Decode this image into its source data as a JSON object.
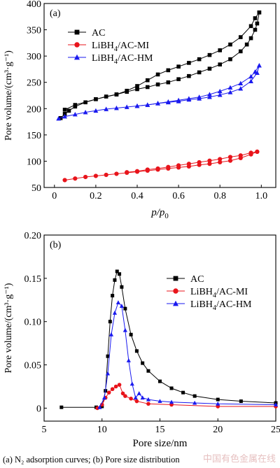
{
  "chart_data": [
    {
      "panel": "(a)",
      "type": "line",
      "xlabel": "p/p0",
      "ylabel": "Pore volume/(cm³·g⁻¹)",
      "xlim": [
        -0.05,
        1.07
      ],
      "ylim": [
        50,
        400
      ],
      "xticks": [
        "0",
        "0.2",
        "0.4",
        "0.6",
        "0.8",
        "1.0"
      ],
      "yticks": [
        "50",
        "100",
        "150",
        "200",
        "250",
        "300",
        "350",
        "400"
      ],
      "legend_position": "top-left",
      "series": [
        {
          "name": "AC",
          "color": "#000000",
          "marker": "square",
          "adsorption": [
            [
              0.03,
              182
            ],
            [
              0.05,
              190
            ],
            [
              0.07,
              196
            ],
            [
              0.1,
              204
            ],
            [
              0.15,
              212
            ],
            [
              0.2,
              218
            ],
            [
              0.25,
              223
            ],
            [
              0.3,
              227
            ],
            [
              0.35,
              232
            ],
            [
              0.4,
              237
            ],
            [
              0.45,
              241
            ],
            [
              0.5,
              246
            ],
            [
              0.55,
              250
            ],
            [
              0.6,
              256
            ],
            [
              0.65,
              262
            ],
            [
              0.7,
              269
            ],
            [
              0.75,
              276
            ],
            [
              0.8,
              284
            ],
            [
              0.85,
              294
            ],
            [
              0.9,
              309
            ],
            [
              0.93,
              322
            ],
            [
              0.95,
              334
            ],
            [
              0.97,
              350
            ],
            [
              0.98,
              362
            ],
            [
              0.99,
              383
            ]
          ],
          "desorption": [
            [
              0.99,
              383
            ],
            [
              0.97,
              372
            ],
            [
              0.95,
              357
            ],
            [
              0.9,
              336
            ],
            [
              0.85,
              322
            ],
            [
              0.8,
              311
            ],
            [
              0.75,
              302
            ],
            [
              0.7,
              294
            ],
            [
              0.65,
              287
            ],
            [
              0.6,
              280
            ],
            [
              0.55,
              273
            ],
            [
              0.5,
              265
            ],
            [
              0.45,
              254
            ],
            [
              0.4,
              243
            ],
            [
              0.35,
              234
            ],
            [
              0.3,
              227
            ],
            [
              0.2,
              218
            ],
            [
              0.1,
              207
            ],
            [
              0.05,
              198
            ]
          ]
        },
        {
          "name": "LiBH4/AC-MI",
          "color": "#e8141b",
          "marker": "circle",
          "adsorption": [
            [
              0.05,
              64
            ],
            [
              0.1,
              67
            ],
            [
              0.15,
              70
            ],
            [
              0.2,
              72
            ],
            [
              0.25,
              74
            ],
            [
              0.3,
              76
            ],
            [
              0.35,
              78
            ],
            [
              0.4,
              80
            ],
            [
              0.45,
              82
            ],
            [
              0.5,
              84
            ],
            [
              0.55,
              86
            ],
            [
              0.6,
              88
            ],
            [
              0.65,
              90
            ],
            [
              0.7,
              93
            ],
            [
              0.75,
              95
            ],
            [
              0.8,
              98
            ],
            [
              0.85,
              101
            ],
            [
              0.9,
              106
            ],
            [
              0.95,
              113
            ],
            [
              0.98,
              118
            ]
          ],
          "desorption": [
            [
              0.98,
              118
            ],
            [
              0.95,
              116
            ],
            [
              0.9,
              111
            ],
            [
              0.85,
              108
            ],
            [
              0.8,
              104
            ],
            [
              0.75,
              101
            ],
            [
              0.7,
              98
            ],
            [
              0.65,
              95
            ],
            [
              0.6,
              92
            ],
            [
              0.55,
              89
            ],
            [
              0.5,
              86
            ],
            [
              0.45,
              84
            ],
            [
              0.4,
              81
            ],
            [
              0.35,
              79
            ]
          ]
        },
        {
          "name": "LiBH4/AC-HM",
          "color": "#1a1aef",
          "marker": "triangle",
          "adsorption": [
            [
              0.02,
              181
            ],
            [
              0.05,
              185
            ],
            [
              0.1,
              189
            ],
            [
              0.15,
              193
            ],
            [
              0.2,
              196
            ],
            [
              0.25,
              199
            ],
            [
              0.3,
              201
            ],
            [
              0.35,
              203
            ],
            [
              0.4,
              205
            ],
            [
              0.45,
              207
            ],
            [
              0.5,
              210
            ],
            [
              0.55,
              212
            ],
            [
              0.6,
              214
            ],
            [
              0.65,
              217
            ],
            [
              0.7,
              219
            ],
            [
              0.75,
              222
            ],
            [
              0.8,
              226
            ],
            [
              0.85,
              231
            ],
            [
              0.9,
              238
            ],
            [
              0.95,
              252
            ],
            [
              0.98,
              268
            ],
            [
              0.99,
              282
            ]
          ],
          "desorption": [
            [
              0.99,
              282
            ],
            [
              0.97,
              270
            ],
            [
              0.95,
              261
            ],
            [
              0.9,
              248
            ],
            [
              0.85,
              240
            ],
            [
              0.8,
              233
            ],
            [
              0.75,
              227
            ],
            [
              0.7,
              222
            ],
            [
              0.65,
              219
            ],
            [
              0.6,
              216
            ],
            [
              0.55,
              213
            ],
            [
              0.5,
              210
            ],
            [
              0.45,
              207
            ],
            [
              0.4,
              205
            ]
          ]
        }
      ]
    },
    {
      "panel": "(b)",
      "type": "line",
      "xlabel": "Pore size/nm",
      "ylabel": "Pore volume/(cm³·g⁻¹)",
      "xlim": [
        5,
        25
      ],
      "ylim": [
        -0.015,
        0.2
      ],
      "xticks": [
        "5",
        "10",
        "15",
        "20",
        "25"
      ],
      "yticks": [
        "0",
        "0.05",
        "0.10",
        "0.15",
        "0.20"
      ],
      "legend_position": "top-right",
      "series": [
        {
          "name": "AC",
          "color": "#000000",
          "marker": "square",
          "points": [
            [
              6.5,
              0.001
            ],
            [
              9.5,
              0.001
            ],
            [
              10.0,
              0.002
            ],
            [
              10.3,
              0.02
            ],
            [
              10.5,
              0.06
            ],
            [
              10.7,
              0.1
            ],
            [
              10.9,
              0.13
            ],
            [
              11.1,
              0.148
            ],
            [
              11.3,
              0.158
            ],
            [
              11.5,
              0.155
            ],
            [
              11.7,
              0.14
            ],
            [
              12.0,
              0.115
            ],
            [
              12.5,
              0.085
            ],
            [
              13.0,
              0.066
            ],
            [
              13.5,
              0.052
            ],
            [
              14.0,
              0.043
            ],
            [
              15.0,
              0.031
            ],
            [
              16.0,
              0.023
            ],
            [
              17.0,
              0.018
            ],
            [
              18.0,
              0.014
            ],
            [
              20.0,
              0.01
            ],
            [
              22.0,
              0.008
            ],
            [
              25.0,
              0.006
            ]
          ]
        },
        {
          "name": "LiBH4/AC-MI",
          "color": "#e8141b",
          "marker": "circle",
          "points": [
            [
              9.6,
              0.0
            ],
            [
              10.0,
              0.004
            ],
            [
              10.3,
              0.012
            ],
            [
              10.6,
              0.018
            ],
            [
              10.9,
              0.022
            ],
            [
              11.2,
              0.025
            ],
            [
              11.5,
              0.027
            ],
            [
              11.8,
              0.017
            ],
            [
              12.0,
              0.014
            ],
            [
              12.5,
              0.011
            ],
            [
              13.0,
              0.008
            ],
            [
              14.0,
              0.005
            ],
            [
              16.0,
              0.004
            ],
            [
              20.0,
              0.002
            ],
            [
              25.0,
              0.002
            ]
          ]
        },
        {
          "name": "LiBH4/AC-HM",
          "color": "#1a1aef",
          "marker": "triangle",
          "points": [
            [
              9.8,
              0.001
            ],
            [
              10.2,
              0.012
            ],
            [
              10.5,
              0.04
            ],
            [
              10.8,
              0.085
            ],
            [
              11.1,
              0.11
            ],
            [
              11.4,
              0.122
            ],
            [
              11.7,
              0.118
            ],
            [
              12.0,
              0.09
            ],
            [
              12.3,
              0.055
            ],
            [
              12.6,
              0.028
            ],
            [
              12.9,
              0.012
            ],
            [
              13.2,
              0.017
            ],
            [
              13.5,
              0.012
            ],
            [
              14.0,
              0.01
            ],
            [
              15.0,
              0.008
            ],
            [
              16.0,
              0.007
            ],
            [
              18.0,
              0.006
            ],
            [
              20.0,
              0.005
            ],
            [
              25.0,
              0.004
            ]
          ]
        }
      ]
    }
  ],
  "caption": "(a)  N₂  adsorption  curves;  (b)  Pore  size  distribution",
  "watermark": "中国有色金属在线"
}
